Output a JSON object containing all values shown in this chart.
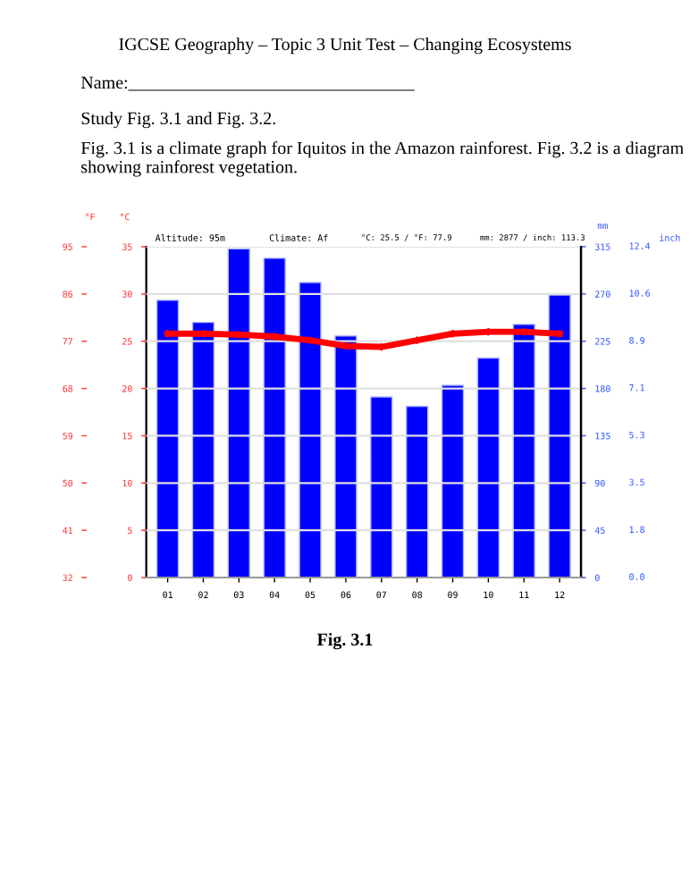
{
  "chart_data": {
    "type": "bar",
    "title": "IGCSE Geography – Topic 3 Unit Test – Changing Ecosystems",
    "annotations": [
      "Name:________________________________",
      "Study Fig. 3.1 and Fig. 3.2.",
      "Fig. 3.1 is a climate graph for Iquitos in the Amazon rainforest. Fig. 3.2 is a diagram showing rainforest vegetation.",
      "Altitude: 95m",
      "Climate: Af",
      "°C: 25.5 / °F: 77.9",
      "mm: 2877 / inch: 113.3",
      "Fig. 3.1",
      "inch",
      "0.0",
      "1.8",
      "3.5",
      "5.3",
      "7.1",
      "8.9",
      "10.6",
      "12.4"
    ],
    "categories": [
      "01",
      "02",
      "03",
      "04",
      "05",
      "06",
      "07",
      "08",
      "09",
      "10",
      "11",
      "12"
    ],
    "series": [
      {
        "axis": "y2",
        "color": "#0000ff",
        "values": [
          264,
          243,
          313,
          304,
          281,
          230,
          172,
          163,
          183,
          209,
          241,
          269
        ]
      },
      {
        "type": "line",
        "axis": "y",
        "color": "#ff0000",
        "marker": "cross",
        "values": [
          25.8,
          25.8,
          25.7,
          25.5,
          25.1,
          24.5,
          24.4,
          25.1,
          25.8,
          26.0,
          26.0,
          25.8
        ]
      }
    ],
    "ylabel": "°C",
    "ylim": [
      0,
      35
    ],
    "yticks": [
      0,
      5,
      10,
      15,
      20,
      25,
      30,
      35
    ],
    "y2label": "mm",
    "y2lim": [
      0,
      315
    ],
    "y2ticks": [
      0,
      45,
      90,
      135,
      180,
      225,
      270,
      315
    ],
    "y3label": "°F",
    "y3lim": [
      32,
      95
    ],
    "y3ticks": [
      32,
      41,
      50,
      59,
      68,
      77,
      86,
      95
    ],
    "grid": "y",
    "legend": false
  }
}
